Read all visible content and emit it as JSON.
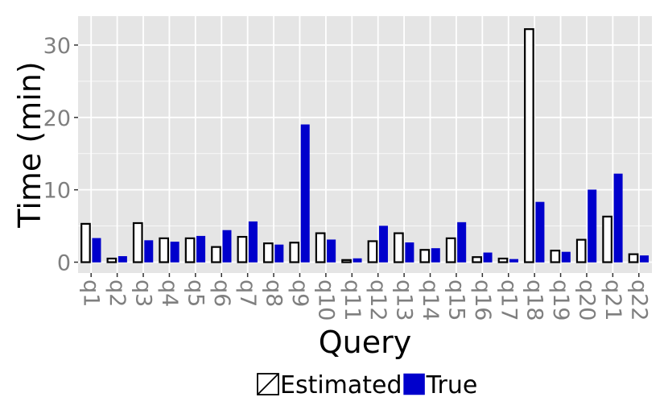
{
  "chart_data": {
    "type": "bar",
    "xlabel": "Query",
    "ylabel": "Time (min)",
    "ylim": [
      -1.5,
      34
    ],
    "yticks": [
      0,
      10,
      20,
      30
    ],
    "grid": true,
    "legend_position": "bottom",
    "categories": [
      "q1",
      "q2",
      "q3",
      "q4",
      "q5",
      "q6",
      "q7",
      "q8",
      "q9",
      "q10",
      "q11",
      "q12",
      "q13",
      "q14",
      "q15",
      "q16",
      "q17",
      "q18",
      "q19",
      "q20",
      "q21",
      "q22"
    ],
    "series": [
      {
        "name": "Estimated",
        "fill": "#ffffff",
        "stroke": "#000000",
        "values": [
          5.3,
          0.5,
          5.4,
          3.3,
          3.3,
          2.1,
          3.5,
          2.6,
          2.7,
          4.0,
          0.3,
          2.9,
          4.0,
          1.7,
          3.3,
          0.7,
          0.5,
          32.2,
          1.6,
          3.1,
          6.3,
          1.1
        ]
      },
      {
        "name": "True",
        "fill": "#0000cc",
        "stroke": "#0000cc",
        "values": [
          3.3,
          0.8,
          3.0,
          2.8,
          3.6,
          4.4,
          5.6,
          2.4,
          19.0,
          3.1,
          0.5,
          5.0,
          2.7,
          1.9,
          5.5,
          1.3,
          0.4,
          8.3,
          1.4,
          10.0,
          12.2,
          0.9
        ]
      }
    ]
  },
  "colors": {
    "panel_background": "#e5e5e5",
    "grid": "#ffffff",
    "tick_text": "#7f7f7f"
  }
}
